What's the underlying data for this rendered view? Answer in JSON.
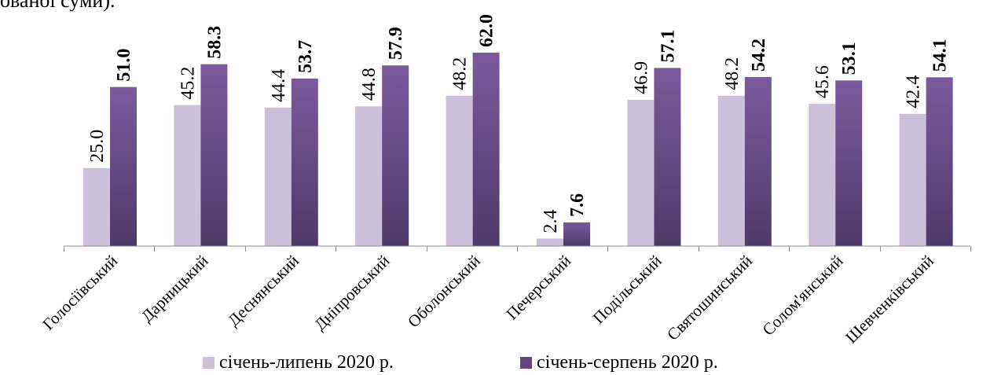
{
  "page": {
    "top_fragment": "ованої суми)."
  },
  "chart_data": {
    "type": "bar",
    "title": "",
    "xlabel": "",
    "ylabel": "",
    "ylim": [
      0,
      70
    ],
    "grid": false,
    "legend_position": "bottom",
    "categories": [
      "Голосіївський",
      "Дарницький",
      "Деснянський",
      "Дніпровський",
      "Оболонський",
      "Печерський",
      "Подільський",
      "Святошинський",
      "Солом'янський",
      "Шевченківський"
    ],
    "series": [
      {
        "name": "січень-липень 2020 р.",
        "color": "#ccc0da",
        "label_bold": false,
        "values": [
          25.0,
          45.2,
          44.4,
          44.8,
          48.2,
          2.4,
          46.9,
          48.2,
          45.6,
          42.4
        ],
        "labels": [
          "25.0",
          "45.2",
          "44.4",
          "44.8",
          "48.2",
          "2.4",
          "46.9",
          "48.2",
          "45.6",
          "42.4"
        ]
      },
      {
        "name": "січень-серпень 2020 р.",
        "color": "#60497a",
        "label_bold": true,
        "values": [
          51.0,
          58.3,
          53.7,
          57.9,
          62.0,
          7.6,
          57.1,
          54.2,
          53.1,
          54.1
        ],
        "labels": [
          "51.0",
          "58.3",
          "53.7",
          "57.9",
          "62.0",
          "7.6",
          "57.1",
          "54.2",
          "53.1",
          "54.1"
        ]
      }
    ]
  }
}
